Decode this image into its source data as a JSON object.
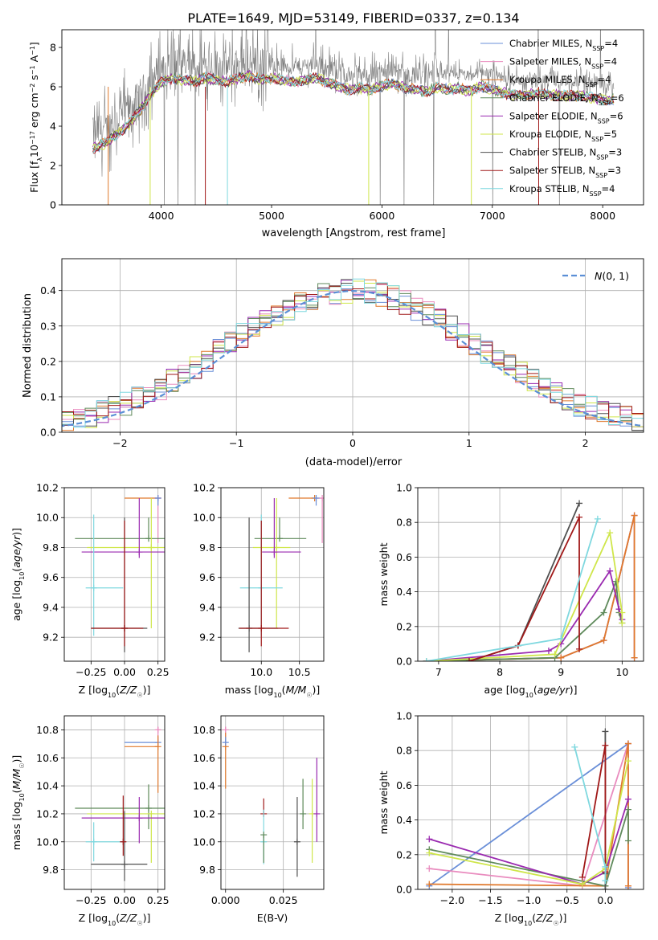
{
  "title": "PLATE=1649, MJD=53149, FIBERID=0337, z=0.134",
  "colors": {
    "Chabrier MILES": "#6a8fd8",
    "Salpeter MILES": "#e98bbe",
    "Kroupa MILES": "#e0792c",
    "Chabrier ELODIE": "#5f8a5b",
    "Salpeter ELODIE": "#9a2ab0",
    "Kroupa ELODIE": "#cfe64a",
    "Chabrier STELIB": "#505050",
    "Salpeter STELIB": "#a01818",
    "Kroupa STELIB": "#7fd8df",
    "data": "#808080",
    "gauss": "#5b8fd6"
  },
  "chart_data": [
    {
      "type": "line",
      "title": "PLATE=1649, MJD=53149, FIBERID=0337, z=0.134",
      "xlabel": "wavelength [Angstrom, rest frame]",
      "ylabel": "Flux [f_λ 10^-17 erg cm^-2 s^-1 A^-1]",
      "xlim": [
        3100,
        8370
      ],
      "ylim": [
        0,
        8.9
      ],
      "xticks": [
        "4000",
        "5000",
        "6000",
        "7000",
        "8000"
      ],
      "yticks": [
        "0",
        "2",
        "4",
        "6",
        "8"
      ],
      "legend_position": "upper-right",
      "legend": [
        {
          "label": "Chabrier MILES, N",
          "sub": "SSP",
          "tail": "=4"
        },
        {
          "label": "Salpeter MILES, N",
          "sub": "SSP",
          "tail": "=4"
        },
        {
          "label": "Kroupa MILES, N",
          "sub": "SSP",
          "tail": "=4"
        },
        {
          "label": "Chabrier ELODIE, N",
          "sub": "SSP",
          "tail": "=6"
        },
        {
          "label": "Salpeter ELODIE, N",
          "sub": "SSP",
          "tail": "=6"
        },
        {
          "label": "Kroupa ELODIE, N",
          "sub": "SSP",
          "tail": "=5"
        },
        {
          "label": "Chabrier STELIB, N",
          "sub": "SSP",
          "tail": "=3"
        },
        {
          "label": "Salpeter STELIB, N",
          "sub": "SSP",
          "tail": "=3"
        },
        {
          "label": "Kroupa STELIB, N",
          "sub": "SSP",
          "tail": "=4"
        }
      ],
      "continuum": {
        "x": [
          3380,
          3500,
          3700,
          3800,
          3900,
          4000,
          4100,
          4200,
          4300,
          4400,
          4500,
          4600,
          4700,
          4800,
          4900,
          5000,
          5100,
          5200,
          5300,
          5400,
          5500,
          5600,
          5700,
          5800,
          5900,
          6000,
          6100,
          6200,
          6300,
          6400,
          6500,
          6600,
          6700,
          6800,
          6900,
          7000,
          7200,
          7400,
          7600,
          7800,
          8000,
          8100
        ],
        "y": [
          3.6,
          3.9,
          4.8,
          5.5,
          6.3,
          7.0,
          7.2,
          7.1,
          7.0,
          7.2,
          7.1,
          7.0,
          7.2,
          7.3,
          7.1,
          7.2,
          7.1,
          7.0,
          7.1,
          7.2,
          7.0,
          6.8,
          6.6,
          6.7,
          6.6,
          6.8,
          6.9,
          6.7,
          6.6,
          6.5,
          6.7,
          6.6,
          6.7,
          6.5,
          6.8,
          6.6,
          6.3,
          6.4,
          6.3,
          6.3,
          6.1,
          6.1
        ]
      }
    },
    {
      "type": "line",
      "xlabel": "(data-model)/error",
      "ylabel": "Normed distribution",
      "xlim": [
        -2.5,
        2.5
      ],
      "ylim": [
        0,
        0.49
      ],
      "xticks": [
        "−2",
        "−1",
        "0",
        "1",
        "2"
      ],
      "yticks": [
        "0.0",
        "0.1",
        "0.2",
        "0.3",
        "0.4"
      ],
      "legend": [
        "N(0,1)"
      ],
      "legend_position": "upper-right",
      "series": [
        {
          "name": "N(0,1)",
          "type": "gaussian",
          "mean": 0,
          "sigma": 1
        }
      ],
      "bin_width": 0.1
    },
    {
      "type": "scatter",
      "xlabel": "Z [log10(Z/Z☉)]",
      "ylabel": "age [log10(age/yr)]",
      "xlim": [
        -0.45,
        0.3
      ],
      "ylim": [
        9.04,
        10.2
      ],
      "xticks": [
        "−0.25",
        "0.00",
        "0.25"
      ],
      "yticks": [
        "9.2",
        "9.4",
        "9.6",
        "9.8",
        "10.0",
        "10.2"
      ],
      "series": [
        {
          "name": "Kroupa MILES",
          "x": 0.25,
          "y": 10.13,
          "xerr": [
            0.25,
            0.0
          ],
          "yerr": [
            0.0,
            0.0
          ]
        },
        {
          "name": "Salpeter MILES",
          "x": 0.25,
          "y": 10.13,
          "xerr": [
            0.0,
            0.02
          ],
          "yerr": [
            0.3,
            0.0
          ]
        },
        {
          "name": "Chabrier MILES",
          "x": 0.25,
          "y": 10.13,
          "xerr": [
            0.0,
            0.0
          ],
          "yerr": [
            0.05,
            0.0
          ]
        },
        {
          "name": "Chabrier ELODIE",
          "x": 0.18,
          "y": 9.86,
          "xerr": [
            0.55,
            0.12
          ],
          "yerr": [
            0.0,
            0.14
          ]
        },
        {
          "name": "Kroupa ELODIE",
          "x": 0.2,
          "y": 9.8,
          "xerr": [
            0.48,
            0.12
          ],
          "yerr": [
            0.54,
            0.33
          ]
        },
        {
          "name": "Salpeter ELODIE",
          "x": 0.11,
          "y": 9.77,
          "xerr": [
            0.43,
            0.19
          ],
          "yerr": [
            0.04,
            0.36
          ]
        },
        {
          "name": "Kroupa STELIB",
          "x": -0.23,
          "y": 9.53,
          "xerr": [
            0.06,
            0.22
          ],
          "yerr": [
            0.32,
            0.49
          ]
        },
        {
          "name": "Chabrier STELIB",
          "x": 0.0,
          "y": 9.26,
          "xerr": [
            0.25,
            0.17
          ],
          "yerr": [
            0.16,
            0.74
          ]
        },
        {
          "name": "Salpeter STELIB",
          "x": 0.0,
          "y": 9.26,
          "xerr": [
            0.25,
            0.14
          ],
          "yerr": [
            0.12,
            0.72
          ]
        }
      ]
    },
    {
      "type": "scatter",
      "xlabel": "mass [log10(M/M☉)]",
      "xlim": [
        9.47,
        10.82
      ],
      "ylim": [
        9.04,
        10.2
      ],
      "xticks": [
        "10.0",
        "10.5"
      ],
      "yticks": [
        "9.2",
        "9.4",
        "9.6",
        "9.8",
        "10.0",
        "10.2"
      ],
      "series": [
        {
          "name": "Kroupa MILES",
          "x": 10.7,
          "y": 10.13,
          "xerr": [
            0.34,
            0.0
          ],
          "yerr": [
            0.0,
            0.0
          ]
        },
        {
          "name": "Salpeter MILES",
          "x": 10.8,
          "y": 10.13,
          "xerr": [
            0.08,
            0.0
          ],
          "yerr": [
            0.3,
            0.0
          ]
        },
        {
          "name": "Chabrier MILES",
          "x": 10.72,
          "y": 10.13,
          "xerr": [
            0.0,
            0.0
          ],
          "yerr": [
            0.05,
            0.0
          ]
        },
        {
          "name": "Chabrier ELODIE",
          "x": 10.24,
          "y": 9.86,
          "xerr": [
            0.33,
            0.35
          ],
          "yerr": [
            0.0,
            0.14
          ]
        },
        {
          "name": "Kroupa ELODIE",
          "x": 10.2,
          "y": 9.8,
          "xerr": [
            0.31,
            0.18
          ],
          "yerr": [
            0.54,
            0.33
          ]
        },
        {
          "name": "Salpeter ELODIE",
          "x": 10.17,
          "y": 9.77,
          "xerr": [
            0.16,
            0.35
          ],
          "yerr": [
            0.04,
            0.36
          ]
        },
        {
          "name": "Kroupa STELIB",
          "x": 10.0,
          "y": 9.53,
          "xerr": [
            0.28,
            0.28
          ],
          "yerr": [
            0.32,
            0.49
          ]
        },
        {
          "name": "Chabrier STELIB",
          "x": 9.84,
          "y": 9.26,
          "xerr": [
            0.14,
            0.38
          ],
          "yerr": [
            0.16,
            0.74
          ]
        },
        {
          "name": "Salpeter STELIB",
          "x": 10.0,
          "y": 9.26,
          "xerr": [
            0.29,
            0.36
          ],
          "yerr": [
            0.12,
            0.72
          ]
        }
      ]
    },
    {
      "type": "line",
      "xlabel": "age [log10(age/yr)]",
      "ylabel": "mass weight",
      "xlim": [
        6.66,
        10.35
      ],
      "ylim": [
        0,
        1.0
      ],
      "xticks": [
        "7",
        "8",
        "9",
        "10"
      ],
      "yticks": [
        "0.0",
        "0.2",
        "0.4",
        "0.6",
        "0.8",
        "1.0"
      ],
      "series": [
        {
          "name": "Chabrier MILES",
          "x": [
            6.8,
            9.0,
            9.7,
            10.2,
            10.2
          ],
          "y": [
            0.0,
            0.02,
            0.12,
            0.84,
            0.02
          ]
        },
        {
          "name": "Salpeter MILES",
          "x": [
            6.8,
            9.0,
            9.7,
            10.2,
            10.2
          ],
          "y": [
            0.0,
            0.02,
            0.12,
            0.84,
            0.02
          ]
        },
        {
          "name": "Kroupa MILES",
          "x": [
            6.8,
            9.0,
            9.7,
            10.2,
            10.2
          ],
          "y": [
            0.0,
            0.02,
            0.12,
            0.84,
            0.02
          ]
        },
        {
          "name": "Chabrier ELODIE",
          "x": [
            6.8,
            8.9,
            9.7,
            9.9,
            9.95,
            10.0
          ],
          "y": [
            0.0,
            0.02,
            0.28,
            0.46,
            0.28,
            0.22
          ]
        },
        {
          "name": "Salpeter ELODIE",
          "x": [
            6.8,
            8.8,
            9.0,
            9.8,
            9.95,
            10.0
          ],
          "y": [
            0.0,
            0.06,
            0.1,
            0.52,
            0.3,
            0.24
          ]
        },
        {
          "name": "Kroupa ELODIE",
          "x": [
            6.8,
            8.9,
            9.8,
            10.0,
            10.0
          ],
          "y": [
            0.0,
            0.04,
            0.74,
            0.28,
            0.22
          ]
        },
        {
          "name": "Chabrier STELIB",
          "x": [
            7.5,
            8.3,
            9.3
          ],
          "y": [
            0.0,
            0.09,
            0.91
          ]
        },
        {
          "name": "Salpeter STELIB",
          "x": [
            7.5,
            8.3,
            9.3,
            9.3
          ],
          "y": [
            0.0,
            0.09,
            0.83,
            0.07
          ]
        },
        {
          "name": "Kroupa STELIB",
          "x": [
            6.8,
            9.0,
            9.6
          ],
          "y": [
            0.0,
            0.13,
            0.82
          ]
        }
      ]
    },
    {
      "type": "scatter",
      "xlabel": "Z [log10(Z/Z☉)]",
      "ylabel": "mass [log10(M/M☉)]",
      "xlim": [
        -0.45,
        0.3
      ],
      "ylim": [
        9.66,
        10.9
      ],
      "xticks": [
        "−0.25",
        "0.00",
        "0.25"
      ],
      "yticks": [
        "9.8",
        "10.0",
        "10.2",
        "10.4",
        "10.6",
        "10.8"
      ],
      "series": [
        {
          "name": "Chabrier MILES",
          "x": 0.25,
          "y": 10.71,
          "xerr": [
            0.25,
            0.0
          ],
          "yerr": [
            0.0,
            0.04
          ]
        },
        {
          "name": "Salpeter MILES",
          "x": 0.25,
          "y": 10.8,
          "xerr": [
            0.02,
            0.02
          ],
          "yerr": [
            0.09,
            0.02
          ]
        },
        {
          "name": "Kroupa MILES",
          "x": 0.25,
          "y": 10.68,
          "xerr": [
            0.25,
            0.0
          ],
          "yerr": [
            0.33,
            0.08
          ]
        },
        {
          "name": "Chabrier ELODIE",
          "x": 0.18,
          "y": 10.24,
          "xerr": [
            0.55,
            0.12
          ],
          "yerr": [
            0.15,
            0.17
          ]
        },
        {
          "name": "Kroupa ELODIE",
          "x": 0.2,
          "y": 10.2,
          "xerr": [
            0.48,
            0.12
          ],
          "yerr": [
            0.35,
            0.0
          ]
        },
        {
          "name": "Salpeter ELODIE",
          "x": 0.11,
          "y": 10.17,
          "xerr": [
            0.43,
            0.19
          ],
          "yerr": [
            0.18,
            0.15
          ]
        },
        {
          "name": "Kroupa STELIB",
          "x": -0.23,
          "y": 10.0,
          "xerr": [
            0.06,
            0.22
          ],
          "yerr": [
            0.14,
            0.14
          ]
        },
        {
          "name": "Chabrier STELIB",
          "x": 0.0,
          "y": 9.84,
          "xerr": [
            0.25,
            0.17
          ],
          "yerr": [
            0.12,
            0.38
          ]
        },
        {
          "name": "Salpeter STELIB",
          "x": -0.01,
          "y": 10.0,
          "xerr": [
            0.0,
            0.0
          ],
          "yerr": [
            0.1,
            0.33
          ]
        }
      ]
    },
    {
      "type": "scatter",
      "xlabel": "E(B-V)",
      "xlim": [
        -0.002,
        0.0425
      ],
      "ylim": [
        9.66,
        10.9
      ],
      "xticks": [
        "0.000",
        "0.025"
      ],
      "yticks": [
        "9.8",
        "10.0",
        "10.2",
        "10.4",
        "10.6",
        "10.8"
      ],
      "series": [
        {
          "name": "Salpeter MILES",
          "x": 0.0,
          "y": 10.8,
          "yerr": [
            0.09,
            0.02
          ]
        },
        {
          "name": "Kroupa MILES",
          "x": 0.0,
          "y": 10.68,
          "yerr": [
            0.3,
            0.1
          ]
        },
        {
          "name": "Chabrier MILES",
          "x": 0.0,
          "y": 10.71,
          "yerr": [
            0.0,
            0.04
          ]
        },
        {
          "name": "Salpeter STELIB",
          "x": 0.0165,
          "y": 10.2,
          "yerr": [
            0.0,
            0.11
          ]
        },
        {
          "name": "Kroupa STELIB",
          "x": 0.0165,
          "y": 10.0,
          "yerr": [
            0.16,
            0.23
          ]
        },
        {
          "name": "Chabrier ELODIE",
          "x": 0.0165,
          "y": 10.05,
          "yerr": [
            0.2,
            0.0
          ]
        },
        {
          "name": "Chabrier STELIB",
          "x": 0.031,
          "y": 10.0,
          "yerr": [
            0.25,
            0.32
          ]
        },
        {
          "name": "Chabrier ELODIE",
          "x": 0.0335,
          "y": 10.2,
          "yerr": [
            0.11,
            0.25
          ]
        },
        {
          "name": "Kroupa ELODIE",
          "x": 0.0375,
          "y": 10.2,
          "yerr": [
            0.35,
            0.25
          ]
        },
        {
          "name": "Salpeter ELODIE",
          "x": 0.0395,
          "y": 10.2,
          "yerr": [
            0.2,
            0.4
          ]
        }
      ]
    },
    {
      "type": "line",
      "xlabel": "Z [log10(Z/Z☉)]",
      "ylabel": "mass weight",
      "xlim": [
        -2.45,
        0.5
      ],
      "ylim": [
        0,
        1.0
      ],
      "xticks": [
        "−2.0",
        "−1.5",
        "−1.0",
        "−0.5",
        "0.0"
      ],
      "yticks": [
        "0.0",
        "0.2",
        "0.4",
        "0.6",
        "0.8",
        "1.0"
      ],
      "series": [
        {
          "name": "Chabrier MILES",
          "x": [
            -2.3,
            0.3,
            0.3
          ],
          "y": [
            0.02,
            0.84,
            0.01
          ]
        },
        {
          "name": "Salpeter MILES",
          "x": [
            -2.3,
            -0.3,
            0.3,
            0.3
          ],
          "y": [
            0.12,
            0.02,
            0.84,
            0.02
          ]
        },
        {
          "name": "Kroupa MILES",
          "x": [
            -2.3,
            0.0,
            0.3,
            0.3
          ],
          "y": [
            0.03,
            0.02,
            0.84,
            0.02
          ]
        },
        {
          "name": "Chabrier ELODIE",
          "x": [
            -2.3,
            0.0,
            0.3,
            0.3
          ],
          "y": [
            0.23,
            0.02,
            0.46,
            0.28
          ]
        },
        {
          "name": "Salpeter ELODIE",
          "x": [
            -2.3,
            -0.3,
            0.0,
            0.3
          ],
          "y": [
            0.29,
            0.03,
            0.1,
            0.52
          ]
        },
        {
          "name": "Kroupa ELODIE",
          "x": [
            -2.3,
            -0.3,
            0.0,
            0.3
          ],
          "y": [
            0.21,
            0.03,
            0.12,
            0.74
          ]
        },
        {
          "name": "Chabrier STELIB",
          "x": [
            0.0,
            0.0,
            0.0
          ],
          "y": [
            0.0,
            0.91,
            0.09
          ]
        },
        {
          "name": "Salpeter STELIB",
          "x": [
            -0.3,
            0.0,
            0.0
          ],
          "y": [
            0.07,
            0.83,
            0.1
          ]
        },
        {
          "name": "Kroupa STELIB",
          "x": [
            -0.4,
            0.0,
            0.0
          ],
          "y": [
            0.82,
            0.13,
            0.05
          ]
        }
      ]
    }
  ]
}
